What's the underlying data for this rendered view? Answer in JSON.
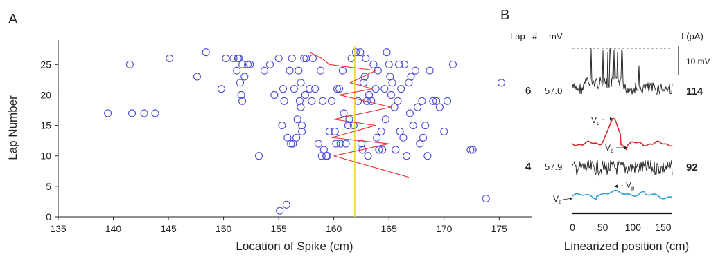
{
  "panel_a": {
    "panel_label": "A",
    "chart_data": {
      "type": "scatter",
      "title": "",
      "xlabel": "Location of Spike (cm)",
      "ylabel": "Lap Number",
      "xlim": [
        135,
        178
      ],
      "ylim": [
        0,
        29
      ],
      "xticks": [
        "135",
        "140",
        "145",
        "150",
        "155",
        "160",
        "165",
        "170",
        "175"
      ],
      "yticks": [
        "0",
        "5",
        "10",
        "15",
        "20",
        "25"
      ],
      "grid": false,
      "series": [
        {
          "kind": "scatter",
          "marker": "open-circle",
          "color": "#4a4ad6",
          "points": [
            [
              139.5,
              17
            ],
            [
              141.5,
              25
            ],
            [
              141.7,
              17
            ],
            [
              142.8,
              17
            ],
            [
              143.8,
              17
            ],
            [
              145.1,
              26
            ],
            [
              147.6,
              23
            ],
            [
              148.4,
              27
            ],
            [
              149.8,
              21
            ],
            [
              150.2,
              26
            ],
            [
              150.9,
              26
            ],
            [
              151.2,
              24
            ],
            [
              151.3,
              26
            ],
            [
              151.4,
              26
            ],
            [
              151.5,
              22
            ],
            [
              151.7,
              25
            ],
            [
              151.6,
              20
            ],
            [
              151.7,
              19
            ],
            [
              151.9,
              23
            ],
            [
              152.2,
              25
            ],
            [
              152.4,
              25
            ],
            [
              153.2,
              10
            ],
            [
              153.7,
              24
            ],
            [
              154.2,
              25
            ],
            [
              154.6,
              20
            ],
            [
              155.0,
              26
            ],
            [
              155.1,
              1
            ],
            [
              155.3,
              15
            ],
            [
              155.4,
              21
            ],
            [
              155.5,
              19
            ],
            [
              155.7,
              2
            ],
            [
              155.8,
              13
            ],
            [
              156.0,
              24
            ],
            [
              156.1,
              12
            ],
            [
              156.2,
              26
            ],
            [
              156.3,
              12
            ],
            [
              156.4,
              21
            ],
            [
              156.6,
              13
            ],
            [
              156.7,
              16
            ],
            [
              156.8,
              24
            ],
            [
              156.9,
              19
            ],
            [
              157.0,
              22
            ],
            [
              157.0,
              18
            ],
            [
              157.1,
              14
            ],
            [
              157.1,
              15
            ],
            [
              157.3,
              26
            ],
            [
              157.4,
              20
            ],
            [
              157.5,
              26
            ],
            [
              157.8,
              21
            ],
            [
              158.0,
              19
            ],
            [
              158.1,
              26
            ],
            [
              158.3,
              21
            ],
            [
              158.6,
              12
            ],
            [
              158.8,
              24
            ],
            [
              158.9,
              10
            ],
            [
              159.0,
              19
            ],
            [
              159.1,
              11
            ],
            [
              159.3,
              10
            ],
            [
              159.4,
              10
            ],
            [
              159.6,
              14
            ],
            [
              159.8,
              19
            ],
            [
              160.1,
              14
            ],
            [
              160.2,
              12
            ],
            [
              160.3,
              21
            ],
            [
              160.5,
              21
            ],
            [
              160.6,
              12
            ],
            [
              160.8,
              24
            ],
            [
              160.9,
              17
            ],
            [
              161.1,
              12
            ],
            [
              161.3,
              15
            ],
            [
              161.4,
              16
            ],
            [
              161.6,
              26
            ],
            [
              161.8,
              15
            ],
            [
              162.0,
              27
            ],
            [
              162.2,
              19
            ],
            [
              162.4,
              27
            ],
            [
              162.5,
              12
            ],
            [
              162.6,
              11
            ],
            [
              162.7,
              22
            ],
            [
              162.8,
              23
            ],
            [
              162.9,
              26
            ],
            [
              163.0,
              19
            ],
            [
              163.1,
              10
            ],
            [
              163.2,
              20
            ],
            [
              163.4,
              19
            ],
            [
              163.6,
              25
            ],
            [
              163.8,
              21
            ],
            [
              163.9,
              13
            ],
            [
              164.0,
              24
            ],
            [
              164.1,
              11
            ],
            [
              164.3,
              14
            ],
            [
              164.4,
              11
            ],
            [
              164.6,
              21
            ],
            [
              164.7,
              16
            ],
            [
              164.8,
              27
            ],
            [
              165.0,
              25
            ],
            [
              165.1,
              23
            ],
            [
              165.2,
              20
            ],
            [
              165.3,
              22
            ],
            [
              165.5,
              18
            ],
            [
              165.6,
              11
            ],
            [
              165.8,
              19
            ],
            [
              165.9,
              25
            ],
            [
              166.0,
              14
            ],
            [
              166.1,
              21
            ],
            [
              166.3,
              13
            ],
            [
              166.4,
              25
            ],
            [
              166.6,
              10
            ],
            [
              166.8,
              22
            ],
            [
              166.9,
              17
            ],
            [
              167.0,
              23
            ],
            [
              167.2,
              15
            ],
            [
              167.4,
              24
            ],
            [
              167.6,
              18
            ],
            [
              167.8,
              12
            ],
            [
              168.0,
              19
            ],
            [
              168.1,
              13
            ],
            [
              168.3,
              15
            ],
            [
              168.5,
              10
            ],
            [
              168.7,
              24
            ],
            [
              169.0,
              19
            ],
            [
              169.3,
              19
            ],
            [
              169.6,
              18
            ],
            [
              170.0,
              14
            ],
            [
              170.3,
              19
            ],
            [
              170.8,
              25
            ],
            [
              172.4,
              11
            ],
            [
              172.6,
              11
            ],
            [
              173.8,
              3
            ],
            [
              175.2,
              22
            ]
          ]
        },
        {
          "kind": "line",
          "color": "#e8302c",
          "points": [
            [
              166.8,
              6.5
            ],
            [
              160.0,
              10
            ],
            [
              165.0,
              12
            ],
            [
              159.8,
              13
            ],
            [
              163.8,
              15
            ],
            [
              160.0,
              16
            ],
            [
              165.2,
              18
            ],
            [
              160.5,
              20
            ],
            [
              163.5,
              21
            ],
            [
              161.5,
              22
            ],
            [
              163.8,
              24
            ],
            [
              159.6,
              25
            ],
            [
              158.9,
              26
            ],
            [
              157.8,
              27
            ]
          ]
        },
        {
          "kind": "vline",
          "color": "#f2d318",
          "x": 161.9
        }
      ]
    }
  },
  "panel_b": {
    "panel_label": "B",
    "header_lap": "Lap",
    "header_hash": "#",
    "header_mv": "mV",
    "header_current": "I (pA)",
    "scale_bar_label": "10 mV",
    "xlabel": "Linearized position (cm)",
    "xticks": [
      "0",
      "50",
      "100",
      "150"
    ],
    "xlim": [
      0,
      165
    ],
    "traces": [
      {
        "lap": "6",
        "mv": "57.0",
        "current": "114",
        "lap_color": "#9b1c1c",
        "current_color": "#9b1c1c",
        "filtered_color": "#d8262c",
        "vp_label": "V",
        "vp_sub": "p",
        "vb_label": "V",
        "vb_sub": "b"
      },
      {
        "lap": "4",
        "mv": "57.9",
        "current": "92",
        "lap_color": "#2aa8d8",
        "current_color": "#2aa8d8",
        "filtered_color": "#2a9fd4",
        "vp_label": "V",
        "vp_sub": "p",
        "vb_label": "V",
        "vb_sub": "b"
      }
    ]
  }
}
